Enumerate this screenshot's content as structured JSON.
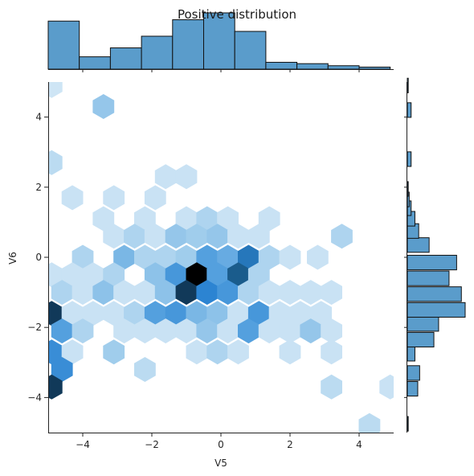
{
  "chart_data": {
    "type": "hexbin",
    "title": "Positive distribution",
    "xlabel": "V5",
    "ylabel": "V6",
    "xlim": [
      -5,
      5
    ],
    "ylim": [
      -5,
      5
    ],
    "x_ticks": [
      -4,
      -2,
      0,
      2,
      4
    ],
    "y_ticks": [
      -4,
      -2,
      0,
      2,
      4
    ],
    "x_tick_labels": [
      "−4",
      "−2",
      "0",
      "2",
      "4"
    ],
    "y_tick_labels": [
      "−4",
      "−2",
      "0",
      "2",
      "4"
    ],
    "grid": false,
    "colors": {
      "hist_fill": "#5a9ccb",
      "hist_edge": "#111111",
      "hex_max": "#000000",
      "hex_low": "#e4f0f9"
    },
    "hexbins": {
      "density_scale": "0 (lightest) to 1 (darkest)",
      "cells": [
        {
          "x": -4.9,
          "y": 4.9,
          "density": 0.08
        },
        {
          "x": -3.4,
          "y": 4.3,
          "density": 0.28
        },
        {
          "x": -4.9,
          "y": 2.7,
          "density": 0.15
        },
        {
          "x": -1.6,
          "y": 2.3,
          "density": 0.1
        },
        {
          "x": -1.0,
          "y": 2.3,
          "density": 0.1
        },
        {
          "x": -4.3,
          "y": 1.7,
          "density": 0.1
        },
        {
          "x": -3.1,
          "y": 1.7,
          "density": 0.1
        },
        {
          "x": -1.9,
          "y": 1.7,
          "density": 0.1
        },
        {
          "x": -3.4,
          "y": 1.1,
          "density": 0.1
        },
        {
          "x": -2.2,
          "y": 1.1,
          "density": 0.1
        },
        {
          "x": -1.0,
          "y": 1.1,
          "density": 0.1
        },
        {
          "x": -0.4,
          "y": 1.1,
          "density": 0.2
        },
        {
          "x": 0.2,
          "y": 1.1,
          "density": 0.1
        },
        {
          "x": 1.4,
          "y": 1.1,
          "density": 0.1
        },
        {
          "x": -3.1,
          "y": 0.6,
          "density": 0.1
        },
        {
          "x": -2.5,
          "y": 0.6,
          "density": 0.2
        },
        {
          "x": -1.9,
          "y": 0.6,
          "density": 0.1
        },
        {
          "x": -1.3,
          "y": 0.6,
          "density": 0.28
        },
        {
          "x": -0.7,
          "y": 0.6,
          "density": 0.25
        },
        {
          "x": -0.1,
          "y": 0.6,
          "density": 0.28
        },
        {
          "x": 0.5,
          "y": 0.6,
          "density": 0.1
        },
        {
          "x": 1.1,
          "y": 0.6,
          "density": 0.1
        },
        {
          "x": 3.5,
          "y": 0.6,
          "density": 0.2
        },
        {
          "x": -4.0,
          "y": 0.0,
          "density": 0.2
        },
        {
          "x": -2.8,
          "y": 0.0,
          "density": 0.35
        },
        {
          "x": -2.2,
          "y": 0.0,
          "density": 0.2
        },
        {
          "x": -1.6,
          "y": 0.0,
          "density": 0.2
        },
        {
          "x": -1.0,
          "y": 0.0,
          "density": 0.25
        },
        {
          "x": -0.4,
          "y": 0.0,
          "density": 0.45
        },
        {
          "x": 0.2,
          "y": 0.0,
          "density": 0.4
        },
        {
          "x": 0.8,
          "y": 0.0,
          "density": 0.65
        },
        {
          "x": 1.4,
          "y": 0.0,
          "density": 0.2
        },
        {
          "x": 2.0,
          "y": 0.0,
          "density": 0.1
        },
        {
          "x": 2.8,
          "y": 0.0,
          "density": 0.1
        },
        {
          "x": -4.9,
          "y": -0.5,
          "density": 0.1
        },
        {
          "x": -4.3,
          "y": -0.5,
          "density": 0.1
        },
        {
          "x": -3.7,
          "y": -0.5,
          "density": 0.1
        },
        {
          "x": -3.1,
          "y": -0.5,
          "density": 0.2
        },
        {
          "x": -1.9,
          "y": -0.5,
          "density": 0.3
        },
        {
          "x": -1.3,
          "y": -0.5,
          "density": 0.5
        },
        {
          "x": -0.7,
          "y": -0.5,
          "density": 1.0
        },
        {
          "x": -0.1,
          "y": -0.5,
          "density": 0.45
        },
        {
          "x": 0.5,
          "y": -0.5,
          "density": 0.75
        },
        {
          "x": 1.1,
          "y": -0.5,
          "density": 0.2
        },
        {
          "x": -4.6,
          "y": -1.0,
          "density": 0.2
        },
        {
          "x": -4.0,
          "y": -1.0,
          "density": 0.1
        },
        {
          "x": -3.4,
          "y": -1.0,
          "density": 0.3
        },
        {
          "x": -2.8,
          "y": -1.0,
          "density": 0.1
        },
        {
          "x": -2.2,
          "y": -1.0,
          "density": 0.1
        },
        {
          "x": -1.6,
          "y": -1.0,
          "density": 0.3
        },
        {
          "x": -1.0,
          "y": -1.0,
          "density": 0.85
        },
        {
          "x": -0.4,
          "y": -1.0,
          "density": 0.6
        },
        {
          "x": 0.2,
          "y": -1.0,
          "density": 0.5
        },
        {
          "x": 0.8,
          "y": -1.0,
          "density": 0.2
        },
        {
          "x": 1.4,
          "y": -1.0,
          "density": 0.1
        },
        {
          "x": 2.0,
          "y": -1.0,
          "density": 0.1
        },
        {
          "x": 2.6,
          "y": -1.0,
          "density": 0.1
        },
        {
          "x": 3.2,
          "y": -1.0,
          "density": 0.1
        },
        {
          "x": -4.9,
          "y": -1.6,
          "density": 0.85
        },
        {
          "x": -4.3,
          "y": -1.6,
          "density": 0.1
        },
        {
          "x": -3.7,
          "y": -1.6,
          "density": 0.1
        },
        {
          "x": -3.1,
          "y": -1.6,
          "density": 0.1
        },
        {
          "x": -2.5,
          "y": -1.6,
          "density": 0.2
        },
        {
          "x": -1.9,
          "y": -1.6,
          "density": 0.45
        },
        {
          "x": -1.3,
          "y": -1.6,
          "density": 0.5
        },
        {
          "x": -0.7,
          "y": -1.6,
          "density": 0.35
        },
        {
          "x": -0.1,
          "y": -1.6,
          "density": 0.3
        },
        {
          "x": 0.5,
          "y": -1.6,
          "density": 0.1
        },
        {
          "x": 1.1,
          "y": -1.6,
          "density": 0.5
        },
        {
          "x": 1.7,
          "y": -1.6,
          "density": 0.1
        },
        {
          "x": 2.3,
          "y": -1.6,
          "density": 0.1
        },
        {
          "x": 2.9,
          "y": -1.6,
          "density": 0.1
        },
        {
          "x": -4.6,
          "y": -2.1,
          "density": 0.45
        },
        {
          "x": -4.0,
          "y": -2.1,
          "density": 0.2
        },
        {
          "x": -2.8,
          "y": -2.1,
          "density": 0.1
        },
        {
          "x": -2.2,
          "y": -2.1,
          "density": 0.1
        },
        {
          "x": -1.6,
          "y": -2.1,
          "density": 0.1
        },
        {
          "x": -1.0,
          "y": -2.1,
          "density": 0.1
        },
        {
          "x": -0.4,
          "y": -2.1,
          "density": 0.28
        },
        {
          "x": 0.2,
          "y": -2.1,
          "density": 0.1
        },
        {
          "x": 0.8,
          "y": -2.1,
          "density": 0.45
        },
        {
          "x": 1.4,
          "y": -2.1,
          "density": 0.1
        },
        {
          "x": 2.0,
          "y": -2.1,
          "density": 0.1
        },
        {
          "x": 2.6,
          "y": -2.1,
          "density": 0.28
        },
        {
          "x": 3.2,
          "y": -2.1,
          "density": 0.1
        },
        {
          "x": -4.9,
          "y": -2.7,
          "density": 0.55
        },
        {
          "x": -4.3,
          "y": -2.7,
          "density": 0.1
        },
        {
          "x": -3.1,
          "y": -2.7,
          "density": 0.25
        },
        {
          "x": -0.7,
          "y": -2.7,
          "density": 0.1
        },
        {
          "x": -0.1,
          "y": -2.7,
          "density": 0.2
        },
        {
          "x": 0.5,
          "y": -2.7,
          "density": 0.1
        },
        {
          "x": 2.0,
          "y": -2.7,
          "density": 0.1
        },
        {
          "x": 3.2,
          "y": -2.7,
          "density": 0.1
        },
        {
          "x": -4.6,
          "y": -3.2,
          "density": 0.55
        },
        {
          "x": -2.2,
          "y": -3.2,
          "density": 0.15
        },
        {
          "x": -4.9,
          "y": -3.7,
          "density": 0.85
        },
        {
          "x": 3.2,
          "y": -3.7,
          "density": 0.15
        },
        {
          "x": 4.9,
          "y": -3.7,
          "density": 0.1
        },
        {
          "x": 4.3,
          "y": -4.8,
          "density": 0.15
        }
      ]
    },
    "marginal_x": {
      "type": "histogram",
      "bin_edges": [
        -5.0,
        -4.1,
        -3.2,
        -2.3,
        -1.4,
        -0.5,
        0.4,
        1.3,
        2.2,
        3.1,
        4.0,
        4.9
      ],
      "counts": [
        70,
        18,
        31,
        48,
        72,
        82,
        55,
        10,
        8,
        5,
        3
      ]
    },
    "marginal_y": {
      "type": "histogram",
      "bin_centers": [
        -4.75,
        -3.75,
        -3.3,
        -2.75,
        -2.35,
        -1.9,
        -1.5,
        -1.05,
        -0.6,
        -0.15,
        0.35,
        0.75,
        1.1,
        1.4,
        1.65,
        1.95,
        2.8,
        4.2,
        4.9
      ],
      "counts": [
        1,
        11,
        13,
        8,
        28,
        33,
        61,
        57,
        44,
        52,
        23,
        12,
        8,
        4,
        2,
        1,
        4,
        4,
        1
      ]
    }
  }
}
